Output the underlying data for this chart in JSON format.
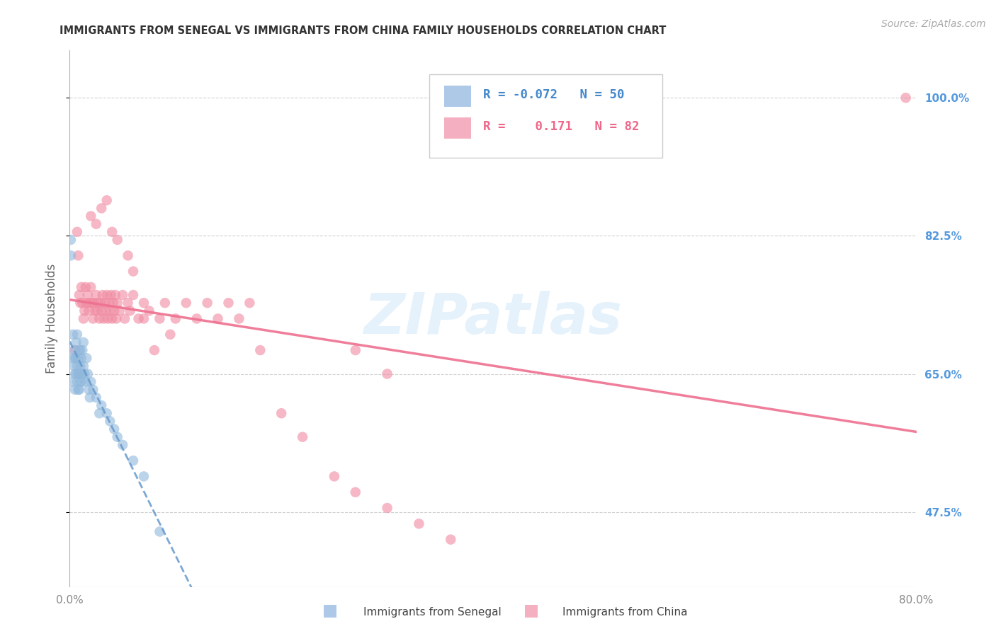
{
  "title": "IMMIGRANTS FROM SENEGAL VS IMMIGRANTS FROM CHINA FAMILY HOUSEHOLDS CORRELATION CHART",
  "source": "Source: ZipAtlas.com",
  "xlabel_senegal": "Immigrants from Senegal",
  "xlabel_china": "Immigrants from China",
  "ylabel": "Family Households",
  "watermark": "ZIPatlas",
  "senegal_color": "#90b8dc",
  "china_color": "#f08aA0",
  "trendline_senegal_color": "#6699cc",
  "trendline_china_color": "#ee7090",
  "legend_senegal_color": "#aec8e8",
  "legend_china_color": "#f4b0c0",
  "xlim": [
    0.0,
    0.8
  ],
  "ylim": [
    0.38,
    1.06
  ],
  "y_ticks": [
    0.475,
    0.65,
    0.825,
    1.0
  ],
  "y_tick_labels": [
    "47.5%",
    "65.0%",
    "82.5%",
    "100.0%"
  ],
  "x_ticks": [
    0.0,
    0.8
  ],
  "x_tick_labels": [
    "0.0%",
    "80.0%"
  ],
  "background_color": "#ffffff",
  "grid_color": "#cccccc",
  "title_color": "#333333",
  "axis_label_color": "#666666",
  "tick_label_color_right": "#5599dd",
  "tick_label_color_bottom": "#888888",
  "senegal_points_x": [
    0.001,
    0.001,
    0.002,
    0.003,
    0.003,
    0.004,
    0.004,
    0.005,
    0.005,
    0.005,
    0.006,
    0.006,
    0.006,
    0.007,
    0.007,
    0.007,
    0.008,
    0.008,
    0.008,
    0.009,
    0.009,
    0.009,
    0.01,
    0.01,
    0.01,
    0.011,
    0.011,
    0.012,
    0.012,
    0.013,
    0.013,
    0.014,
    0.015,
    0.016,
    0.017,
    0.018,
    0.019,
    0.02,
    0.022,
    0.025,
    0.028,
    0.03,
    0.035,
    0.038,
    0.042,
    0.045,
    0.05,
    0.06,
    0.07,
    0.085
  ],
  "senegal_points_y": [
    0.8,
    0.82,
    0.64,
    0.67,
    0.7,
    0.66,
    0.68,
    0.65,
    0.67,
    0.63,
    0.65,
    0.67,
    0.69,
    0.64,
    0.66,
    0.7,
    0.65,
    0.67,
    0.63,
    0.65,
    0.68,
    0.63,
    0.66,
    0.64,
    0.68,
    0.64,
    0.67,
    0.65,
    0.68,
    0.66,
    0.69,
    0.65,
    0.64,
    0.67,
    0.65,
    0.63,
    0.62,
    0.64,
    0.63,
    0.62,
    0.6,
    0.61,
    0.6,
    0.59,
    0.58,
    0.57,
    0.56,
    0.54,
    0.52,
    0.45
  ],
  "china_points_x": [
    0.005,
    0.007,
    0.008,
    0.009,
    0.01,
    0.011,
    0.012,
    0.013,
    0.014,
    0.015,
    0.016,
    0.017,
    0.018,
    0.019,
    0.02,
    0.021,
    0.022,
    0.023,
    0.024,
    0.025,
    0.026,
    0.027,
    0.028,
    0.029,
    0.03,
    0.031,
    0.032,
    0.033,
    0.034,
    0.035,
    0.036,
    0.037,
    0.038,
    0.039,
    0.04,
    0.041,
    0.042,
    0.043,
    0.044,
    0.045,
    0.047,
    0.05,
    0.052,
    0.055,
    0.057,
    0.06,
    0.065,
    0.07,
    0.075,
    0.08,
    0.085,
    0.09,
    0.095,
    0.1,
    0.11,
    0.12,
    0.13,
    0.14,
    0.15,
    0.16,
    0.17,
    0.18,
    0.2,
    0.22,
    0.25,
    0.27,
    0.3,
    0.33,
    0.36,
    0.27,
    0.3,
    0.02,
    0.025,
    0.03,
    0.035,
    0.04,
    0.045,
    0.055,
    0.06,
    0.07,
    0.79
  ],
  "china_points_y": [
    0.68,
    0.83,
    0.8,
    0.75,
    0.74,
    0.76,
    0.74,
    0.72,
    0.73,
    0.76,
    0.74,
    0.75,
    0.73,
    0.74,
    0.76,
    0.74,
    0.72,
    0.74,
    0.73,
    0.75,
    0.73,
    0.74,
    0.72,
    0.74,
    0.73,
    0.75,
    0.72,
    0.74,
    0.73,
    0.75,
    0.72,
    0.74,
    0.73,
    0.75,
    0.72,
    0.74,
    0.73,
    0.75,
    0.72,
    0.74,
    0.73,
    0.75,
    0.72,
    0.74,
    0.73,
    0.75,
    0.72,
    0.74,
    0.73,
    0.68,
    0.72,
    0.74,
    0.7,
    0.72,
    0.74,
    0.72,
    0.74,
    0.72,
    0.74,
    0.72,
    0.74,
    0.68,
    0.6,
    0.57,
    0.52,
    0.5,
    0.48,
    0.46,
    0.44,
    0.68,
    0.65,
    0.85,
    0.84,
    0.86,
    0.87,
    0.83,
    0.82,
    0.8,
    0.78,
    0.72,
    1.0
  ]
}
